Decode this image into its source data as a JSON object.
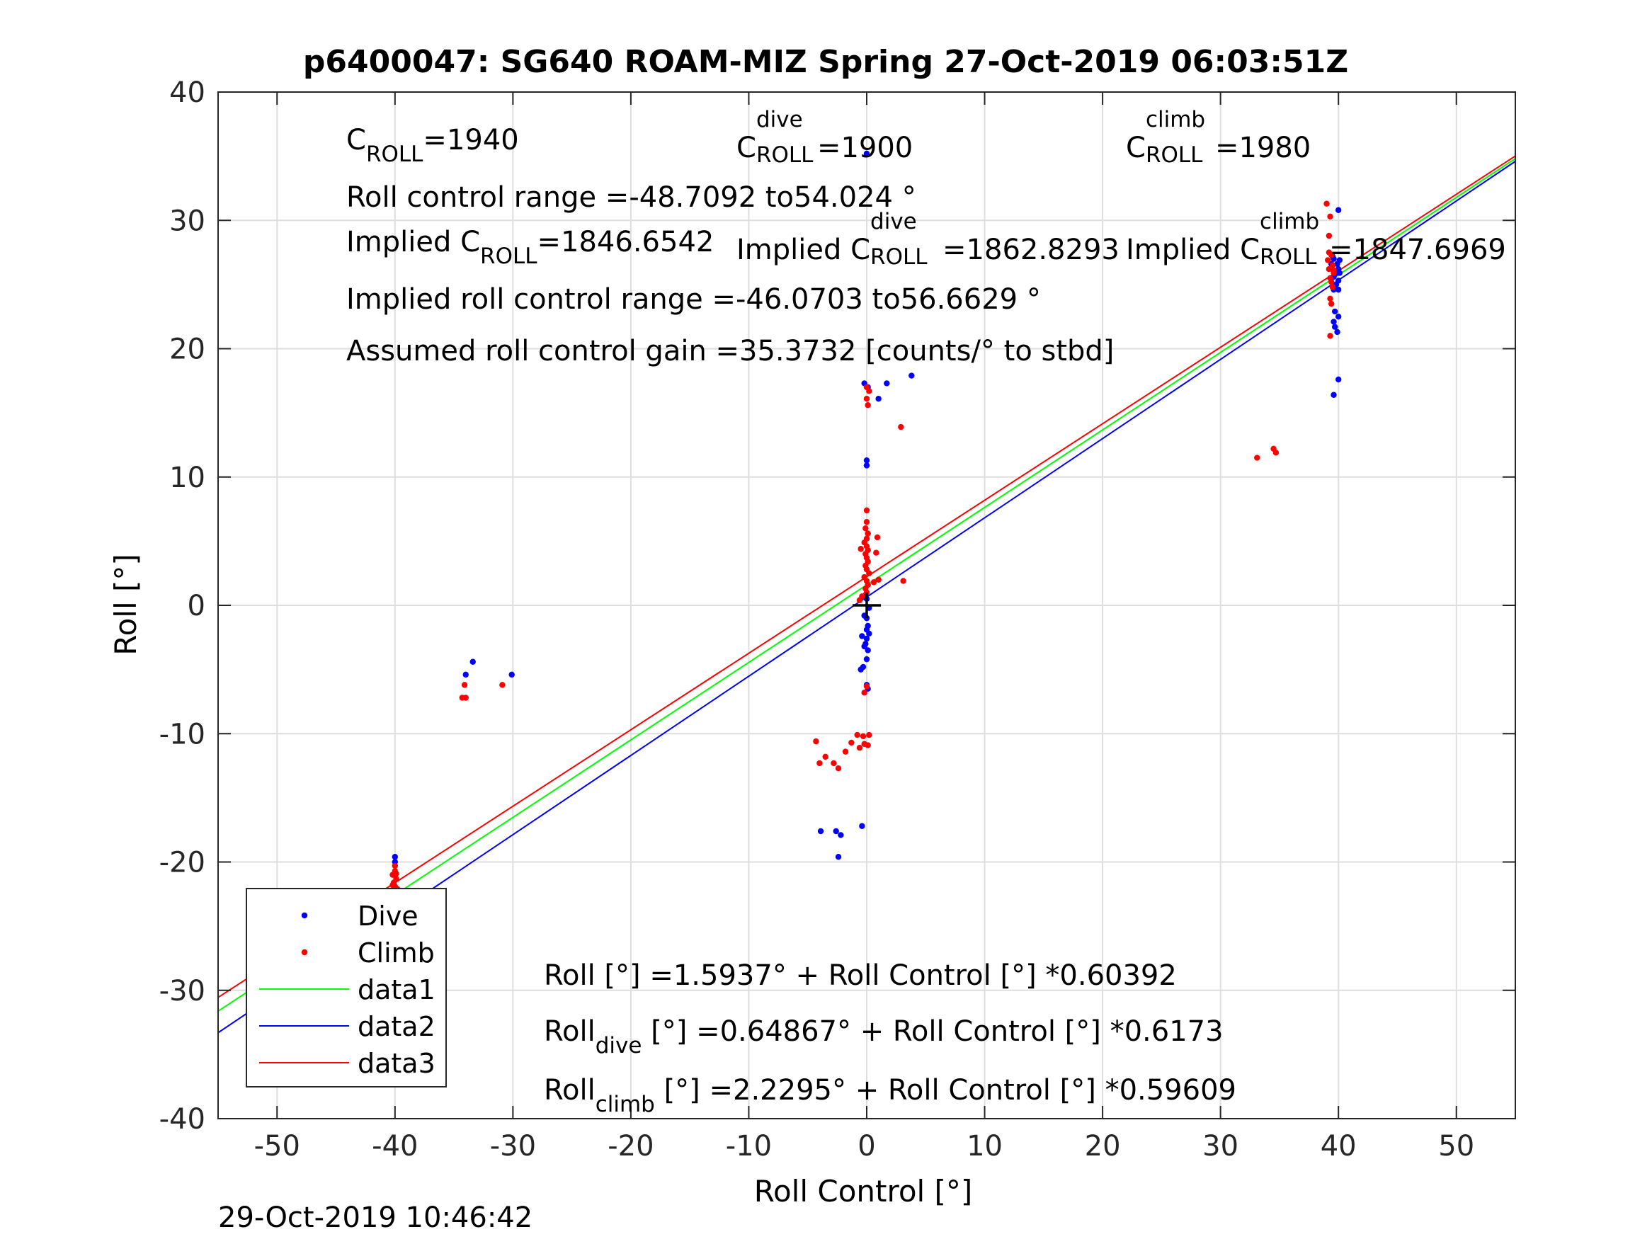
{
  "chart_data": {
    "type": "scatter",
    "title": "p6400047: SG640 ROAM-MIZ Spring 27-Oct-2019 06:03:51Z",
    "xlabel": "Roll Control [°]",
    "ylabel": "Roll [°]",
    "xlim": [
      -55,
      55
    ],
    "ylim": [
      -40,
      40
    ],
    "xticks": [
      -50,
      -40,
      -30,
      -20,
      -10,
      0,
      10,
      20,
      30,
      40,
      50
    ],
    "yticks": [
      -40,
      -30,
      -20,
      -10,
      0,
      10,
      20,
      30,
      40
    ],
    "grid": true,
    "legend_position": "bottom-left",
    "legend": [
      "Dive",
      "Climb",
      "data1",
      "data2",
      "data3"
    ],
    "colors": {
      "dive": "#0000ff",
      "climb": "#ff0000",
      "data1": "#00ff00",
      "data2": "#0000ff",
      "data3": "#ff0000",
      "marker": "#000000"
    },
    "series": [
      {
        "name": "Dive",
        "kind": "points",
        "points": [
          [
            -40,
            -19.6
          ],
          [
            -40,
            -20.0
          ],
          [
            -40,
            -23.3
          ],
          [
            -40.2,
            -24.1
          ],
          [
            -40,
            -24.5
          ],
          [
            -40.1,
            -24.9
          ],
          [
            -40,
            -25.2
          ],
          [
            -39.9,
            -25.5
          ],
          [
            -40.1,
            -25.8
          ],
          [
            -40,
            -26.2
          ],
          [
            -39.8,
            -26.6
          ],
          [
            -40,
            -28.0
          ],
          [
            -34,
            -5.4
          ],
          [
            -33.4,
            -4.4
          ],
          [
            -30.1,
            -5.4
          ],
          [
            0,
            35.2
          ],
          [
            -0.2,
            17.3
          ],
          [
            0.1,
            17.0
          ],
          [
            1,
            16.1
          ],
          [
            1.7,
            17.3
          ],
          [
            3.8,
            17.9
          ],
          [
            0,
            11.3
          ],
          [
            0,
            10.9
          ],
          [
            0,
            10.9
          ],
          [
            0,
            0.5
          ],
          [
            -0.2,
            -0.8
          ],
          [
            0,
            -1.0
          ],
          [
            0.1,
            -1.6
          ],
          [
            -0.4,
            -2.4
          ],
          [
            0,
            -2.6
          ],
          [
            -0.1,
            -3.0
          ],
          [
            0.1,
            -3.5
          ],
          [
            0,
            -4.2
          ],
          [
            -0.3,
            -4.8
          ],
          [
            -0.5,
            -5.0
          ],
          [
            0,
            -6.2
          ],
          [
            0.1,
            -6.5
          ],
          [
            0.2,
            -0.2
          ],
          [
            -0.1,
            0.8
          ],
          [
            0,
            -1.9
          ],
          [
            0.2,
            -2.2
          ],
          [
            -0.2,
            -3.2
          ],
          [
            -3.9,
            -17.6
          ],
          [
            -2.6,
            -17.6
          ],
          [
            -2.2,
            -17.9
          ],
          [
            -2.4,
            -19.6
          ],
          [
            -0.4,
            -17.2
          ],
          [
            40,
            30.8
          ],
          [
            39.6,
            27.0
          ],
          [
            39.9,
            26.6
          ],
          [
            40,
            26.2
          ],
          [
            39.7,
            25.8
          ],
          [
            40,
            25.3
          ],
          [
            39.8,
            25.0
          ],
          [
            40,
            24.6
          ],
          [
            39.6,
            24.6
          ],
          [
            39.7,
            22.9
          ],
          [
            40,
            22.5
          ],
          [
            39.6,
            22.1
          ],
          [
            39.7,
            21.7
          ],
          [
            39.9,
            21.3
          ],
          [
            40,
            17.6
          ],
          [
            39.6,
            16.4
          ],
          [
            39.4,
            26.6
          ],
          [
            39.6,
            25.6
          ],
          [
            40.1,
            25.9
          ],
          [
            39.5,
            27.2
          ],
          [
            40.1,
            26.9
          ]
        ]
      },
      {
        "name": "Climb",
        "kind": "points",
        "points": [
          [
            -40,
            -20.3
          ],
          [
            -40,
            -20.7
          ],
          [
            -40.2,
            -21.0
          ],
          [
            -39.9,
            -21.3
          ],
          [
            -40.1,
            -21.6
          ],
          [
            -40,
            -21.9
          ],
          [
            -39.8,
            -22.1
          ],
          [
            -40.1,
            -22.3
          ],
          [
            -40,
            -22.6
          ],
          [
            -39.9,
            -20.9
          ],
          [
            -40.2,
            -21.8
          ],
          [
            -34.3,
            -7.2
          ],
          [
            -34.0,
            -7.2
          ],
          [
            -34.1,
            -6.2
          ],
          [
            -30.9,
            -6.2
          ],
          [
            0,
            17.0
          ],
          [
            0.2,
            16.7
          ],
          [
            0,
            16.1
          ],
          [
            0.1,
            15.6
          ],
          [
            2.9,
            13.9
          ],
          [
            0,
            7.4
          ],
          [
            0,
            6.5
          ],
          [
            -0.1,
            6.0
          ],
          [
            0.1,
            5.6
          ],
          [
            0,
            5.2
          ],
          [
            -0.2,
            4.9
          ],
          [
            0,
            4.6
          ],
          [
            0.1,
            4.3
          ],
          [
            -0.1,
            4.0
          ],
          [
            0,
            3.7
          ],
          [
            0.1,
            3.4
          ],
          [
            -0.1,
            3.1
          ],
          [
            0,
            2.8
          ],
          [
            0.2,
            2.5
          ],
          [
            -0.2,
            2.2
          ],
          [
            0,
            1.9
          ],
          [
            0.1,
            1.6
          ],
          [
            -0.1,
            1.3
          ],
          [
            0,
            1.0
          ],
          [
            -0.4,
            0.7
          ],
          [
            -0.6,
            0.4
          ],
          [
            0.6,
            1.8
          ],
          [
            0.8,
            4.1
          ],
          [
            0.9,
            5.3
          ],
          [
            1,
            2.0
          ],
          [
            3.1,
            1.9
          ],
          [
            -0.5,
            4.4
          ],
          [
            -0.2,
            -6.8
          ],
          [
            0,
            -6.3
          ],
          [
            -4.3,
            -10.6
          ],
          [
            -4.0,
            -12.3
          ],
          [
            -3.5,
            -11.8
          ],
          [
            -2.8,
            -12.3
          ],
          [
            -2.4,
            -12.7
          ],
          [
            -1.8,
            -11.4
          ],
          [
            -1.3,
            -10.7
          ],
          [
            -0.8,
            -10.1
          ],
          [
            -0.3,
            -10.2
          ],
          [
            0.2,
            -10.1
          ],
          [
            -0.6,
            -11.1
          ],
          [
            -0.2,
            -10.8
          ],
          [
            0.1,
            -10.9
          ],
          [
            39,
            31.3
          ],
          [
            39.3,
            30.3
          ],
          [
            39.2,
            28.8
          ],
          [
            39.4,
            27.3
          ],
          [
            39.1,
            26.9
          ],
          [
            39.5,
            26.5
          ],
          [
            39.2,
            26.2
          ],
          [
            39.6,
            25.9
          ],
          [
            39.3,
            25.5
          ],
          [
            39.4,
            25.2
          ],
          [
            39.5,
            24.8
          ],
          [
            39.3,
            23.9
          ],
          [
            39.4,
            23.5
          ],
          [
            39.3,
            21.0
          ],
          [
            33.1,
            11.5
          ],
          [
            34.5,
            12.2
          ],
          [
            34.7,
            11.9
          ],
          [
            39.2,
            27.5
          ],
          [
            39.6,
            26.1
          ]
        ]
      },
      {
        "name": "data1",
        "kind": "line",
        "intercept": 1.5937,
        "slope": 0.60392
      },
      {
        "name": "data2",
        "kind": "line",
        "intercept": 0.64867,
        "slope": 0.6173
      },
      {
        "name": "data3",
        "kind": "line",
        "intercept": 2.2295,
        "slope": 0.59609
      }
    ],
    "annotations": {
      "c_roll": {
        "base": "C",
        "sub": "ROLL",
        "value": "=1940"
      },
      "c_roll_dive": {
        "base": "C",
        "sup": "dive",
        "sub": "ROLL",
        "value": "=1900"
      },
      "c_roll_climb": {
        "base": "C",
        "sup": "climb",
        "sub": "ROLL",
        "value": "=1980"
      },
      "roll_control_range": "Roll control range =-48.7092 to54.024 °",
      "implied_c_roll": {
        "base": "Implied C",
        "sub": "ROLL",
        "value": "=1846.6542"
      },
      "implied_c_roll_dive": {
        "base": "Implied C",
        "sup": "dive",
        "sub": "ROLL",
        "value": "=1862.8293"
      },
      "implied_c_roll_climb": {
        "base": "Implied C",
        "sup": "climb",
        "sub": "ROLL",
        "value": "=1847.6969"
      },
      "implied_range": "Implied roll control range =-46.0703 to56.6629 °",
      "gain": "Assumed roll control gain =35.3732 [counts/° to stbd]",
      "fit_all": "Roll [°] =1.5937° + Roll Control [°] *0.60392",
      "fit_dive": {
        "base": "Roll",
        "sub": "dive",
        "rest": " [°] =0.64867° + Roll Control [°] *0.6173"
      },
      "fit_climb": {
        "base": "Roll",
        "sub": "climb",
        "rest": " [°] =2.2295° + Roll Control [°] *0.59609"
      }
    }
  },
  "footer": {
    "timestamp": "29-Oct-2019 10:46:42"
  }
}
